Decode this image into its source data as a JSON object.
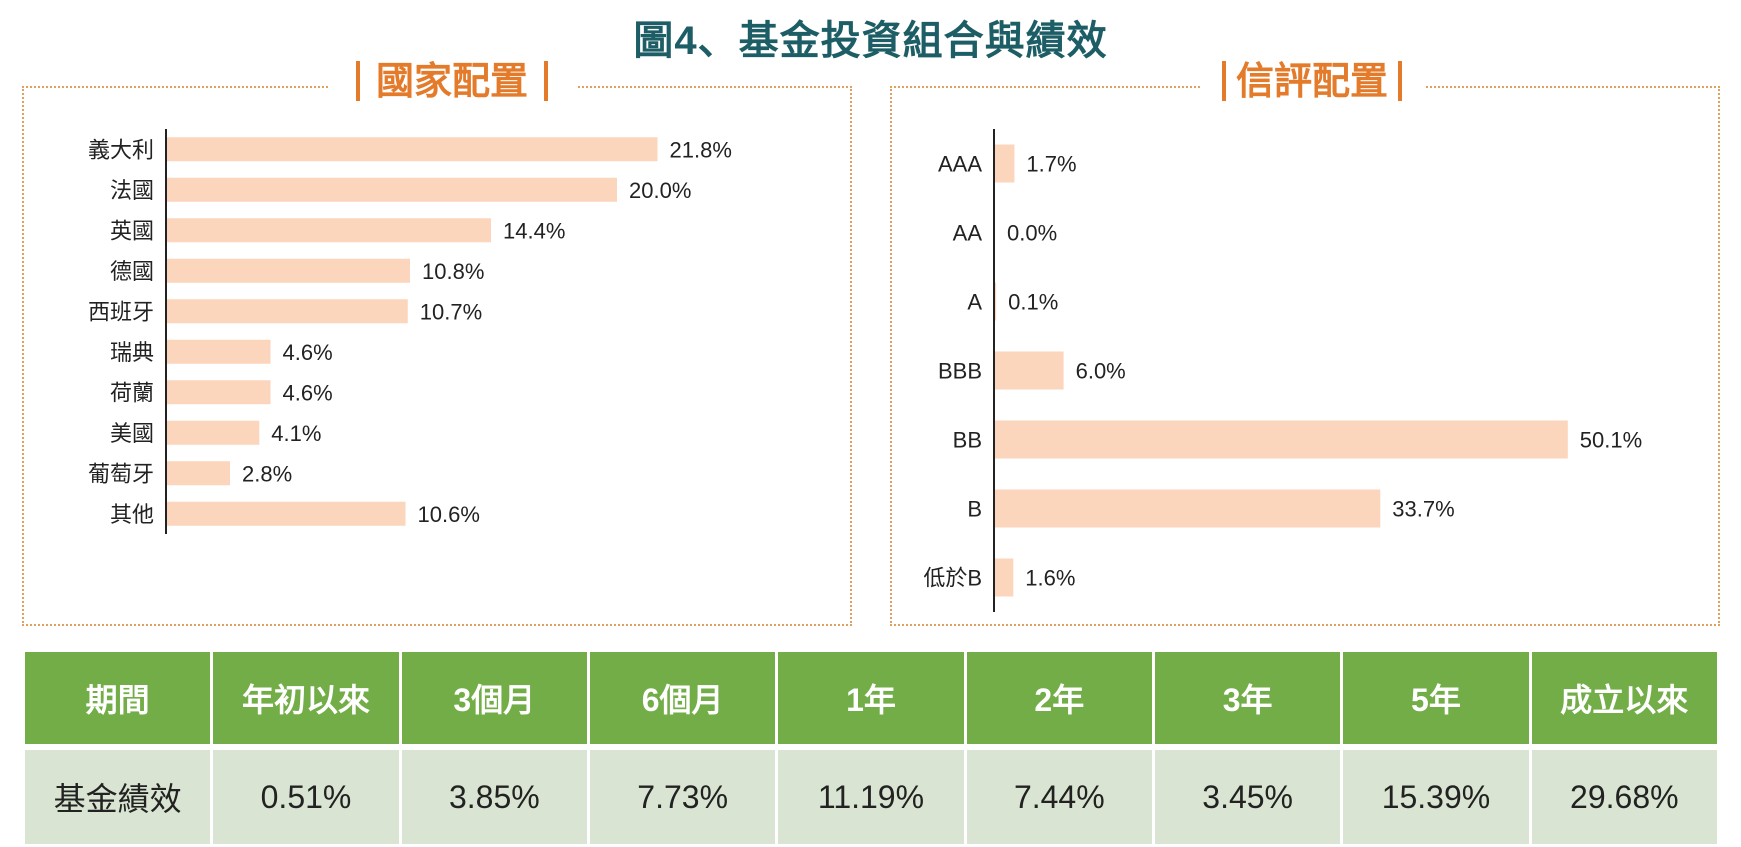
{
  "title": "圖4、基金投資組合與績效",
  "chart_data": [
    {
      "type": "bar",
      "orientation": "horizontal",
      "title": "國家配置",
      "categories": [
        "義大利",
        "法國",
        "英國",
        "德國",
        "西班牙",
        "瑞典",
        "荷蘭",
        "美國",
        "葡萄牙",
        "其他"
      ],
      "values": [
        21.8,
        20.0,
        14.4,
        10.8,
        10.7,
        4.6,
        4.6,
        4.1,
        2.8,
        10.6
      ],
      "value_labels": [
        "21.8%",
        "20.0%",
        "14.4%",
        "10.8%",
        "10.7%",
        "4.6%",
        "4.6%",
        "4.1%",
        "2.8%",
        "10.6%"
      ],
      "xlim": [
        0,
        30
      ],
      "grid": false,
      "bar_color": "#fbd5bc"
    },
    {
      "type": "bar",
      "orientation": "horizontal",
      "title": "信評配置",
      "categories": [
        "AAA",
        "AA",
        "A",
        "BBB",
        "BB",
        "B",
        "低於B"
      ],
      "values": [
        1.7,
        0.0,
        0.1,
        6.0,
        50.1,
        33.7,
        1.6
      ],
      "value_labels": [
        "1.7%",
        "0.0%",
        "0.1%",
        "6.0%",
        "50.1%",
        "33.7%",
        "1.6%"
      ],
      "xlim": [
        0,
        60
      ],
      "grid": false,
      "bar_color": "#fbd5bc"
    }
  ],
  "performance_table": {
    "headers": [
      "期間",
      "年初以來",
      "3個月",
      "6個月",
      "1年",
      "2年",
      "3年",
      "5年",
      "成立以來"
    ],
    "row": [
      "基金績效",
      "0.51%",
      "3.85%",
      "7.73%",
      "11.19%",
      "7.44%",
      "3.45%",
      "15.39%",
      "29.68%"
    ]
  }
}
